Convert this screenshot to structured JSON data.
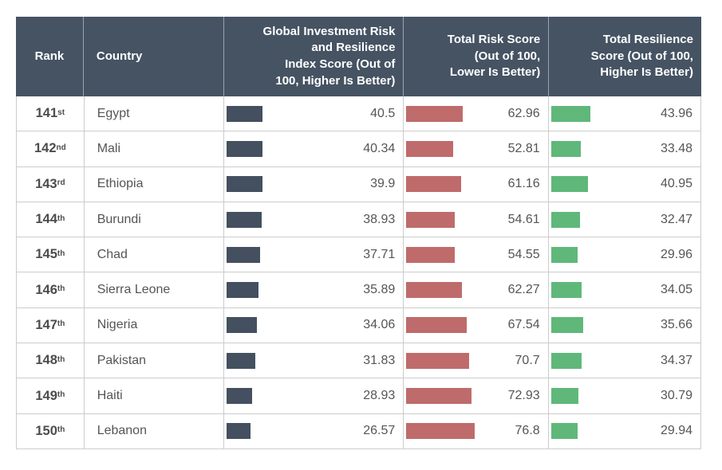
{
  "chart_data": {
    "type": "table",
    "columns": [
      "Rank",
      "Country",
      "Global Investment Risk\nand Resilience\nIndex Score (Out of\n100, Higher Is Better)",
      "Total Risk Score\n(Out of 100,\nLower Is Better)",
      "Total Resilience\nScore (Out of 100,\nHigher Is Better)"
    ],
    "value_range": [
      0,
      100
    ],
    "bar_meaning": {
      "index": "Global Investment Risk and Resilience Index Score",
      "risk": "Total Risk Score",
      "resilience": "Total Resilience Score"
    },
    "colors": {
      "header_bg": "#455363",
      "header_text": "#ffffff",
      "index": "#44505f",
      "risk": "#bf6b6b",
      "resilience": "#5fb87a",
      "row_border": "#cccccc",
      "body_text": "#555555"
    },
    "rows": [
      {
        "rank": 141,
        "ordinal": "st",
        "country": "Egypt",
        "index_score": 40.5,
        "risk_score": 62.96,
        "resilience_score": 43.96
      },
      {
        "rank": 142,
        "ordinal": "nd",
        "country": "Mali",
        "index_score": 40.34,
        "risk_score": 52.81,
        "resilience_score": 33.48
      },
      {
        "rank": 143,
        "ordinal": "rd",
        "country": "Ethiopia",
        "index_score": 39.9,
        "risk_score": 61.16,
        "resilience_score": 40.95
      },
      {
        "rank": 144,
        "ordinal": "th",
        "country": "Burundi",
        "index_score": 38.93,
        "risk_score": 54.61,
        "resilience_score": 32.47
      },
      {
        "rank": 145,
        "ordinal": "th",
        "country": "Chad",
        "index_score": 37.71,
        "risk_score": 54.55,
        "resilience_score": 29.96
      },
      {
        "rank": 146,
        "ordinal": "th",
        "country": "Sierra Leone",
        "index_score": 35.89,
        "risk_score": 62.27,
        "resilience_score": 34.05
      },
      {
        "rank": 147,
        "ordinal": "th",
        "country": "Nigeria",
        "index_score": 34.06,
        "risk_score": 67.54,
        "resilience_score": 35.66
      },
      {
        "rank": 148,
        "ordinal": "th",
        "country": "Pakistan",
        "index_score": 31.83,
        "risk_score": 70.7,
        "resilience_score": 34.37
      },
      {
        "rank": 149,
        "ordinal": "th",
        "country": "Haiti",
        "index_score": 28.93,
        "risk_score": 72.93,
        "resilience_score": 30.79
      },
      {
        "rank": 150,
        "ordinal": "th",
        "country": "Lebanon",
        "index_score": 26.57,
        "risk_score": 76.8,
        "resilience_score": 29.94
      }
    ]
  }
}
